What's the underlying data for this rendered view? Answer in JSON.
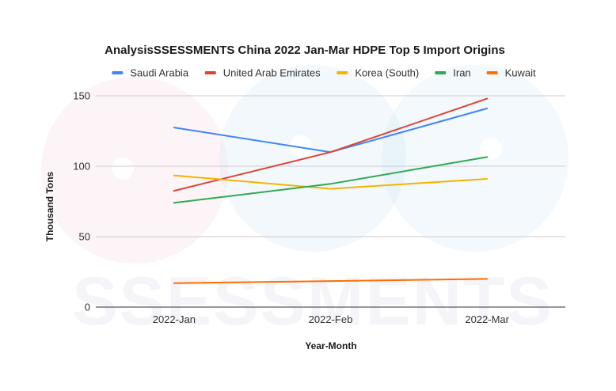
{
  "colors": {
    "background": "#ffffff",
    "gridline": "#cccccc",
    "baseline": "#333333"
  },
  "watermark": {
    "text": "SSESSMENTS"
  },
  "chart_data": {
    "type": "line",
    "title": "AnalysisSSESSMENTS China 2022 Jan-Mar HDPE Top 5 Import Origins",
    "xlabel": "Year-Month",
    "ylabel": "Thousand Tons",
    "categories": [
      "2022-Jan",
      "2022-Feb",
      "2022-Mar"
    ],
    "ylim": [
      0,
      150
    ],
    "yticks": [
      0,
      50,
      100,
      150
    ],
    "grid": true,
    "legend_position": "top",
    "series": [
      {
        "name": "Saudi Arabia",
        "color": "#4285f4",
        "values": [
          127.5,
          110,
          141
        ]
      },
      {
        "name": "United Arab Emirates",
        "color": "#db4437",
        "values": [
          82.5,
          110,
          148
        ]
      },
      {
        "name": "Korea (South)",
        "color": "#f4b400",
        "values": [
          93.5,
          84,
          91
        ]
      },
      {
        "name": "Iran",
        "color": "#34a853",
        "values": [
          74,
          87.5,
          106.5
        ]
      },
      {
        "name": "Kuwait",
        "color": "#ff6d01",
        "values": [
          17,
          18.5,
          20
        ]
      }
    ]
  }
}
